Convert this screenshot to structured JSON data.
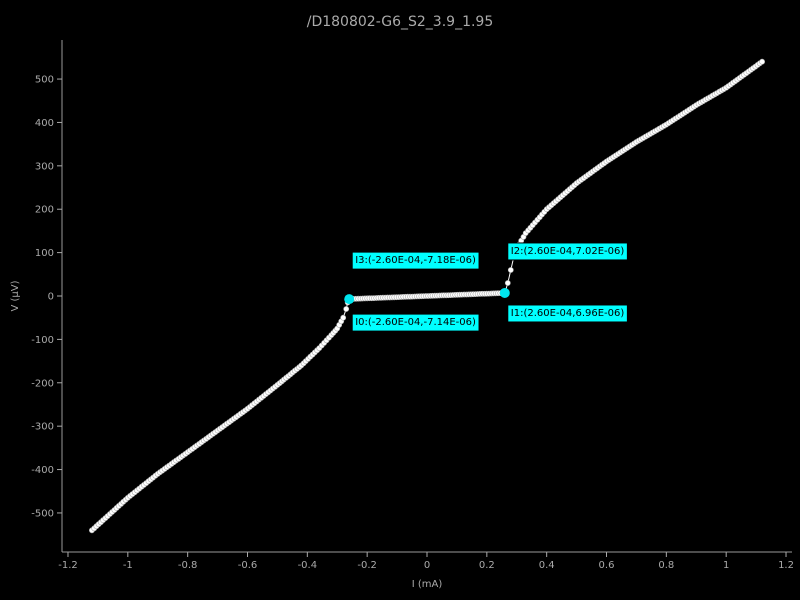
{
  "chart_data": {
    "type": "scatter",
    "title": "/D180802-G6_S2_3.9_1.95",
    "xlabel": "I (mA)",
    "ylabel": "V (μV)",
    "xlim": [
      -1.22,
      1.22
    ],
    "ylim": [
      -590,
      590
    ],
    "x_ticks": [
      -1.2,
      -1,
      -0.8,
      -0.6,
      -0.4,
      -0.2,
      0,
      0.2,
      0.4,
      0.6,
      0.8,
      1,
      1.2
    ],
    "y_ticks": [
      -500,
      -400,
      -300,
      -200,
      -100,
      0,
      100,
      200,
      300,
      400,
      500
    ],
    "x_tick_labels": [
      "-1.2",
      "-1",
      "-0.8",
      "-0.6",
      "-0.4",
      "-0.2",
      "0",
      "0.2",
      "0.4",
      "0.6",
      "0.8",
      "1",
      "1.2"
    ],
    "y_tick_labels": [
      "-500",
      "-400",
      "-300",
      "-200",
      "-100",
      "0",
      "100",
      "200",
      "300",
      "400",
      "500"
    ],
    "grid": false,
    "legend": "none",
    "series": [
      {
        "color": "#ffffff",
        "points": [
          [
            -1.12,
            -540
          ],
          [
            -1.0,
            -465
          ],
          [
            -0.9,
            -410
          ],
          [
            -0.8,
            -360
          ],
          [
            -0.7,
            -310
          ],
          [
            -0.6,
            -260
          ],
          [
            -0.5,
            -205
          ],
          [
            -0.42,
            -160
          ],
          [
            -0.36,
            -120
          ],
          [
            -0.32,
            -90
          ],
          [
            -0.3,
            -75
          ],
          [
            -0.28,
            -50
          ],
          [
            -0.27,
            -30
          ],
          [
            -0.265,
            -15
          ],
          [
            -0.26,
            -7
          ],
          [
            0.26,
            7
          ],
          [
            0.27,
            30
          ],
          [
            0.28,
            60
          ],
          [
            0.29,
            90
          ],
          [
            0.3,
            110
          ],
          [
            0.33,
            145
          ],
          [
            0.4,
            200
          ],
          [
            0.5,
            260
          ],
          [
            0.6,
            310
          ],
          [
            0.7,
            355
          ],
          [
            0.8,
            395
          ],
          [
            0.9,
            440
          ],
          [
            1.0,
            480
          ],
          [
            1.12,
            540
          ]
        ]
      }
    ],
    "annotations": [
      {
        "id": "I3",
        "label": "I3:(-2.60E-04,-7.18E-06)",
        "x": -0.26,
        "y": -7.18,
        "color": "#00ffff"
      },
      {
        "id": "I0",
        "label": "I0:(-2.60E-04,-7.14E-06)",
        "x": -0.26,
        "y": -7.14,
        "color": "#00ffff"
      },
      {
        "id": "I2",
        "label": "I2:(2.60E-04,7.02E-06)",
        "x": 0.26,
        "y": 7.02,
        "color": "#00ffff"
      },
      {
        "id": "I1",
        "label": "I1:(2.60E-04,6.96E-06)",
        "x": 0.26,
        "y": 6.96,
        "color": "#00ffff"
      }
    ]
  }
}
